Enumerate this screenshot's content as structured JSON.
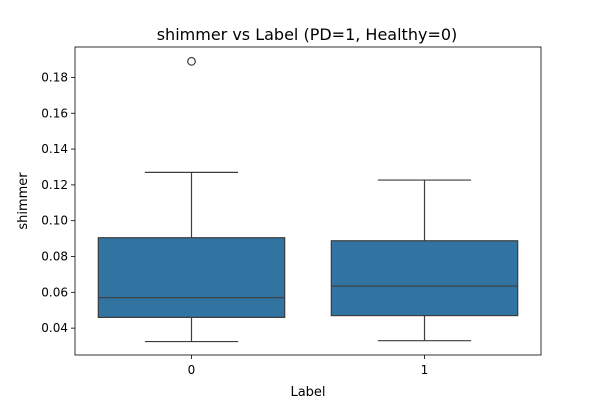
{
  "chart_data": {
    "type": "box",
    "title": "shimmer vs Label (PD=1, Healthy=0)",
    "xlabel": "Label",
    "ylabel": "shimmer",
    "categories": [
      "0",
      "1"
    ],
    "ylim": [
      0.025,
      0.197
    ],
    "yticks": [
      0.04,
      0.06,
      0.08,
      0.1,
      0.12,
      0.14,
      0.16,
      0.18
    ],
    "ytick_labels": [
      "0.04",
      "0.06",
      "0.08",
      "0.10",
      "0.12",
      "0.14",
      "0.16",
      "0.18"
    ],
    "box_color": "#3274a1",
    "line_color": "#3d3d3d",
    "series": [
      {
        "category": "0",
        "whisker_low": 0.0325,
        "q1": 0.046,
        "median": 0.057,
        "q3": 0.0905,
        "whisker_high": 0.127,
        "outliers": [
          0.189
        ]
      },
      {
        "category": "1",
        "whisker_low": 0.033,
        "q1": 0.047,
        "median": 0.0635,
        "q3": 0.0888,
        "whisker_high": 0.1227,
        "outliers": []
      }
    ]
  }
}
